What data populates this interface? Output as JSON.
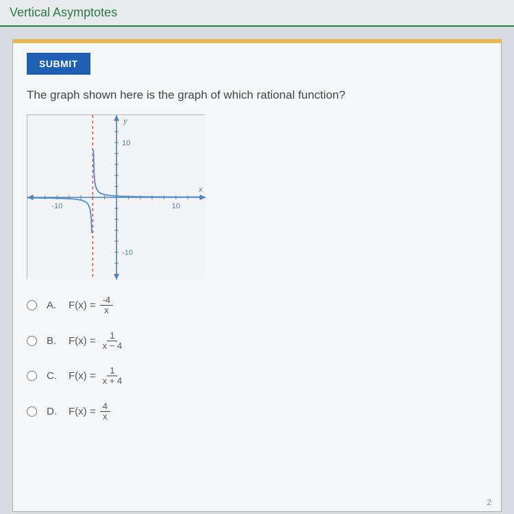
{
  "titlebar": {
    "text": "Vertical Asymptotes"
  },
  "submit": {
    "label": "SUBMIT"
  },
  "question": {
    "text": "The graph shown here is the graph of which rational function?"
  },
  "graph": {
    "type": "rational-function-plot",
    "xlim": [
      -15,
      15
    ],
    "ylim": [
      -15,
      15
    ],
    "xtick_labels": [
      {
        "x": -10,
        "label": "-10"
      },
      {
        "x": 10,
        "label": "10"
      }
    ],
    "ytick_labels": [
      {
        "y": 10,
        "label": "10"
      },
      {
        "y": -10,
        "label": "-10"
      }
    ],
    "axis_label_x": "x",
    "axis_label_y": "y",
    "axis_color": "#5a7fb0",
    "tick_color": "#5a7fb0",
    "label_color": "#5a7fb0",
    "curve_color": "#4a8fd6",
    "asymptote_color": "#d64a4a",
    "asymptote_dash": "4,4",
    "background_color": "#f2f3f4",
    "border_color": "#b0b4b8",
    "label_fontsize": 11,
    "curve_width": 1.8,
    "axis_width": 1.6,
    "vertical_asymptote_x": -4,
    "function_description": "1/(x+4)"
  },
  "choices": [
    {
      "letter": "A.",
      "lhs": "F(x) =",
      "num": "-4",
      "den": "x"
    },
    {
      "letter": "B.",
      "lhs": "F(x) =",
      "num": "1",
      "den": "x − 4"
    },
    {
      "letter": "C.",
      "lhs": "F(x) =",
      "num": "1",
      "den": "x + 4"
    },
    {
      "letter": "D.",
      "lhs": "F(x) =",
      "num": "4",
      "den": "x"
    }
  ],
  "footer": {
    "page": "2"
  }
}
